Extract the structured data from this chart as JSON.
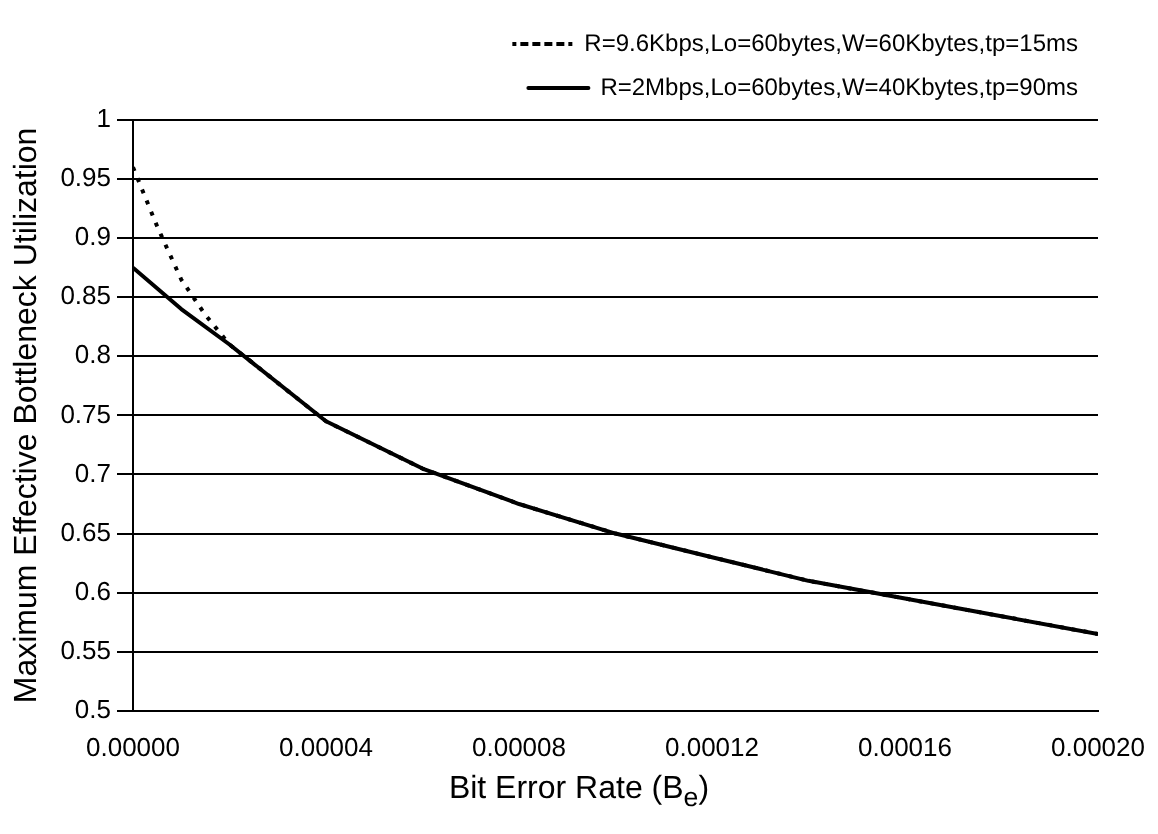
{
  "chart_data": {
    "type": "line",
    "xlabel": "Bit Error Rate (B$_{e}$)",
    "ylabel": "Maximum Effective Bottleneck Utilization",
    "xlim": [
      0,
      0.0002
    ],
    "xticks": [
      {
        "value": 0,
        "label": "0.00000"
      },
      {
        "value": 4e-05,
        "label": "0.00004"
      },
      {
        "value": 8e-05,
        "label": "0.00008"
      },
      {
        "value": 0.00012,
        "label": "0.00012"
      },
      {
        "value": 0.00016,
        "label": "0.00016"
      },
      {
        "value": 0.0002,
        "label": "0.00020"
      }
    ],
    "ylim": [
      0.5,
      1
    ],
    "yticks": [
      0.5,
      0.55,
      0.6,
      0.65,
      0.7,
      0.75,
      0.8,
      0.85,
      0.9,
      0.95,
      1
    ],
    "grid": "y",
    "legend": "top right",
    "marker": "none",
    "series": [
      {
        "name": "R=9.6Kbps,Lo=60bytes,W=60Kbytes,tp=15ms",
        "color": "#000000",
        "line_style": "dotted",
        "x": [
          0,
          5e-06,
          1e-05,
          1.5e-05,
          2e-05,
          4e-05,
          6e-05,
          8e-05,
          0.0001,
          0.00012,
          0.00014,
          0.00016,
          0.00018,
          0.0002
        ],
        "values": [
          0.96,
          0.91,
          0.865,
          0.835,
          0.81,
          0.745,
          0.705,
          0.675,
          0.65,
          0.63,
          0.61,
          0.595,
          0.58,
          0.565
        ]
      },
      {
        "name": "R=2Mbps,Lo=60bytes,W=40Kbytes,tp=90ms",
        "color": "#000000",
        "line_style": "solid",
        "x": [
          0,
          1e-05,
          2e-05,
          4e-05,
          6e-05,
          8e-05,
          0.0001,
          0.00012,
          0.00014,
          0.00016,
          0.00018,
          0.0002
        ],
        "values": [
          0.875,
          0.84,
          0.81,
          0.745,
          0.705,
          0.675,
          0.65,
          0.63,
          0.61,
          0.595,
          0.58,
          0.565
        ]
      }
    ]
  }
}
